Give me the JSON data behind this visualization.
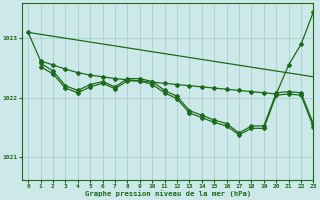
{
  "title": "Graphe pression niveau de la mer (hPa)",
  "bg_color": "#cce8e8",
  "grid_color": "#aacece",
  "line_color": "#1a6b1a",
  "xlim": [
    -0.5,
    23
  ],
  "ylim": [
    1020.6,
    1023.6
  ],
  "yticks": [
    1021,
    1022,
    1023
  ],
  "xticks": [
    0,
    1,
    2,
    3,
    4,
    5,
    6,
    7,
    8,
    9,
    10,
    11,
    12,
    13,
    14,
    15,
    16,
    17,
    18,
    19,
    20,
    21,
    22,
    23
  ],
  "series1_straight": {
    "x": [
      0,
      23
    ],
    "y": [
      1023.1,
      1022.35
    ]
  },
  "series2_rising_end": {
    "x": [
      0,
      1,
      2,
      3,
      4,
      5,
      6,
      7,
      8,
      9,
      10,
      11,
      12,
      13,
      14,
      15,
      16,
      17,
      18,
      19,
      20,
      21,
      22,
      23
    ],
    "y": [
      1023.1,
      1022.62,
      1022.55,
      1022.48,
      1022.42,
      1022.38,
      1022.35,
      1022.32,
      1022.3,
      1022.28,
      1022.26,
      1022.24,
      1022.22,
      1022.2,
      1022.18,
      1022.16,
      1022.14,
      1022.12,
      1022.1,
      1022.08,
      1022.06,
      1022.55,
      1022.9,
      1023.45
    ]
  },
  "series3_zigzag": {
    "x": [
      1,
      2,
      3,
      4,
      5,
      6,
      7,
      8,
      9,
      10,
      11,
      12,
      13,
      14,
      15,
      16,
      17,
      18,
      19,
      20,
      21,
      22,
      23
    ],
    "y": [
      1022.58,
      1022.45,
      1022.2,
      1022.12,
      1022.22,
      1022.27,
      1022.18,
      1022.32,
      1022.32,
      1022.27,
      1022.12,
      1022.02,
      1021.78,
      1021.7,
      1021.62,
      1021.56,
      1021.4,
      1021.52,
      1021.52,
      1022.08,
      1022.1,
      1022.08,
      1021.55
    ]
  },
  "series4_zigzag2": {
    "x": [
      1,
      2,
      3,
      4,
      5,
      6,
      7,
      8,
      9,
      10,
      11,
      12,
      13,
      14,
      15,
      16,
      17,
      18,
      19,
      20,
      21,
      22,
      23
    ],
    "y": [
      1022.52,
      1022.4,
      1022.16,
      1022.08,
      1022.18,
      1022.24,
      1022.15,
      1022.28,
      1022.28,
      1022.22,
      1022.08,
      1021.98,
      1021.74,
      1021.66,
      1021.58,
      1021.52,
      1021.37,
      1021.48,
      1021.48,
      1022.04,
      1022.06,
      1022.04,
      1021.5
    ]
  }
}
